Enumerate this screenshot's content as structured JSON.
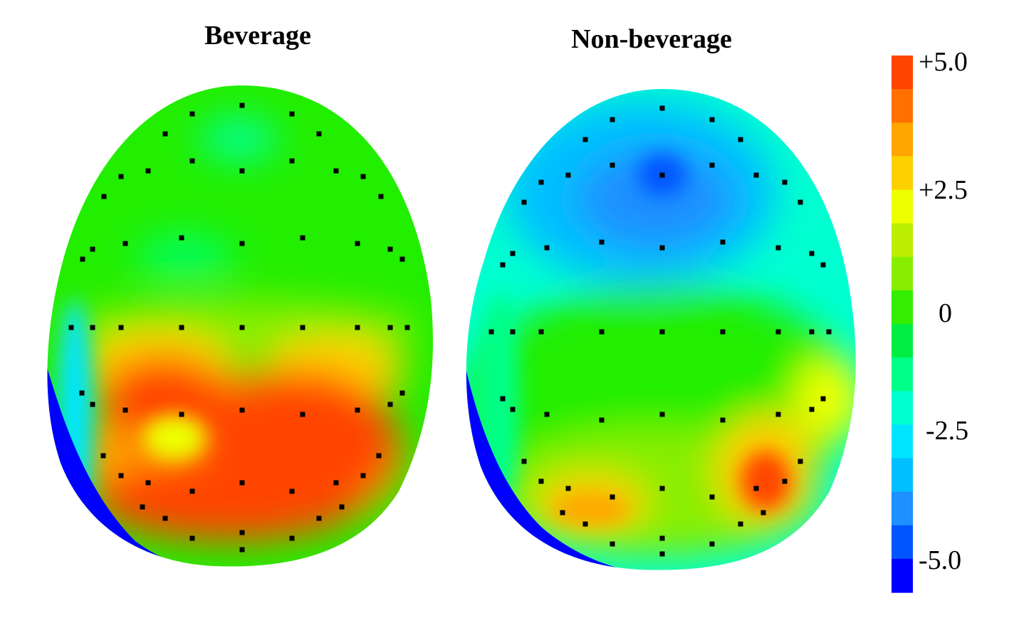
{
  "chart_data": [
    {
      "type": "heatmap",
      "title": "Beverage",
      "colormap": [
        "#0000ff",
        "#0055ff",
        "#1e90ff",
        "#00bfff",
        "#00e5ff",
        "#00ffd0",
        "#00ff88",
        "#00ee44",
        "#33ee00",
        "#88ee00",
        "#bbee00",
        "#eeff00",
        "#ffd000",
        "#ffa500",
        "#ff7000",
        "#ff4500"
      ],
      "electrodes_drawn": true,
      "regions": [
        {
          "label": "frontal",
          "value": 0.0
        },
        {
          "label": "frontal-center",
          "value": -1.2
        },
        {
          "label": "central",
          "value": 1.0
        },
        {
          "label": "posterior",
          "value": 5.0
        },
        {
          "label": "left-posterior-pocket",
          "value": 2.5
        },
        {
          "label": "lower-left-rim",
          "value": -5.0
        }
      ]
    },
    {
      "type": "heatmap",
      "title": "Non-beverage",
      "electrodes_drawn": true,
      "regions": [
        {
          "label": "frontal",
          "value": -4.0
        },
        {
          "label": "frontal-peak",
          "value": -4.5
        },
        {
          "label": "central",
          "value": -1.5
        },
        {
          "label": "posterior",
          "value": 1.5
        },
        {
          "label": "right-posterior",
          "value": 5.0
        },
        {
          "label": "left-posterior",
          "value": 3.5
        },
        {
          "label": "lower-left-rim",
          "value": -5.0
        }
      ]
    }
  ],
  "colorbar": {
    "range": [
      -5.0,
      5.0
    ],
    "steps": 16,
    "ticks": [
      {
        "label": "+5.0",
        "value": 5.0
      },
      {
        "label": "+2.5",
        "value": 2.5
      },
      {
        "label": "0",
        "value": 0.0
      },
      {
        "label": "-2.5",
        "value": -2.5
      },
      {
        "label": "-5.0",
        "value": -5.0
      }
    ]
  }
}
